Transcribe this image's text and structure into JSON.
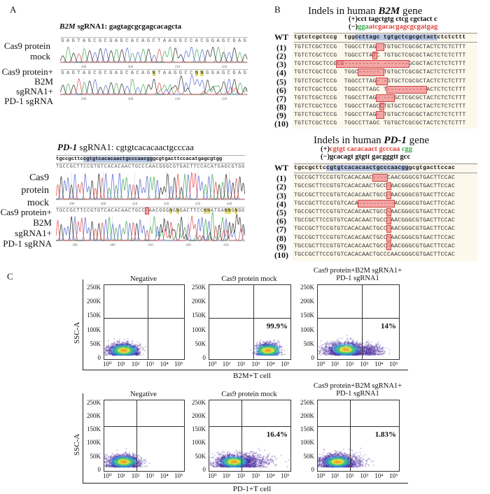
{
  "panels": {
    "a": "A",
    "b": "B",
    "c": "C"
  },
  "panel_a": {
    "b2m": {
      "title_gene": "B2M",
      "title_rest": " sgRNA1: gagtagcgcgagcacagcta",
      "mock_label": [
        "Cas9 protein",
        "mock"
      ],
      "edit_label": [
        "Cas9 protein+",
        "B2M sgRNA1+",
        "PD-1 sgRNA"
      ],
      "mock_bases": "GAGTAGCGCGAGCACAGCTAAGGCCACGGAGCGAG",
      "edit_bases": "GAGTAGCGCGAGCACAGNTAAGGCCNNGGAGCGAG",
      "mock_ticks": [
        "290",
        "300",
        "310",
        "320"
      ],
      "edit_ticks": [
        "290",
        "300",
        "310",
        "320"
      ]
    },
    "pd1": {
      "title_gene": "PD-1",
      "title_rest": " sgRNA1: cgtgtcacacaactgcccaa",
      "ref_pre": "tgccgcttc",
      "ref_hl": "cgtgtcacacaactgcccaacgg",
      "ref_post": "gcgtgacttccacatgagcgtgg",
      "mock_label": [
        "Cas9 protein",
        "mock"
      ],
      "edit_label": [
        "Cas9 protein+",
        "B2M sgRNA1+",
        "PD-1 sgRNA"
      ],
      "mock_bases": "TGCCGCTTCCGTGTCACACAACTGCCCAACGGGCGTGACTTCCACATGAGCGTGG",
      "edit_bases": "TGCCGCTTCCGTGTCACACAACTGCC-AACGGGNGNGACTTCCNNATGANNGNGG",
      "mock_ticks": [
        "390",
        "400",
        "410",
        "420",
        "430",
        "440"
      ],
      "edit_ticks": [
        "390",
        "400",
        "410",
        "420",
        "430"
      ]
    }
  },
  "panel_b": {
    "b2m": {
      "title_pre": "Indels in human ",
      "title_gene": "B2M",
      "title_post": " gene",
      "plus": "(+)cct tagctgtg ctcg cgctact c",
      "minus_prefix": "(−)",
      "minus_green": "gga",
      "minus_red": "atcgacacgagcgcgatgag",
      "rows": [
        {
          "label": "WT",
          "segs": [
            [
              "tgtctcgctccg  tgg",
              0
            ],
            [
              "ccttagc tgtgctcgcgctact",
              2
            ],
            [
              "ctctcttt",
              0
            ]
          ]
        },
        {
          "label": "(1)",
          "segs": [
            [
              "TGTCTCGCTCCG  TGGCCTTAG",
              0
            ],
            [
              "- ",
              1
            ],
            [
              "TGTGCTCGCGCTACTCTCTCTTT",
              0
            ]
          ]
        },
        {
          "label": "(2)",
          "segs": [
            [
              "TGTCTCGCTCCG  TGGCCTTA",
              0
            ],
            [
              "T",
              1
            ],
            [
              "C TGTGCTCGCGCTACTCTCTCTTT",
              0
            ]
          ]
        },
        {
          "label": "(3)",
          "segs": [
            [
              "TGTCTCGCTCCG",
              0
            ],
            [
              "CG---------- -------",
              1
            ],
            [
              "GCGCTACTCTCTCTTT",
              0
            ]
          ]
        },
        {
          "label": "(4)",
          "segs": [
            [
              "TGTCTCGCTCCG  TGGC",
              0
            ],
            [
              "------ ",
              1
            ],
            [
              "TGTGCTCGCGCTACTCTCTCTTT",
              0
            ]
          ]
        },
        {
          "label": "(5)",
          "segs": [
            [
              "TGTCTCGCTCCG  TGGCCTTAG",
              0
            ],
            [
              "- -",
              1
            ],
            [
              "GTGCTCGCGCTACTCTCTCTTT",
              0
            ]
          ]
        },
        {
          "label": "(6)",
          "segs": [
            [
              "TGTCTCGCTCCG  TGGCCTTAGC T",
              0
            ],
            [
              "-----------",
              1
            ],
            [
              "ACTCTCTCTTT",
              0
            ]
          ]
        },
        {
          "label": "(7)",
          "segs": [
            [
              "TGTCTCGCTCCG  TGGCCTTAG",
              0
            ],
            [
              "- ---",
              1
            ],
            [
              "GCTCGCGCTACTCTCTCTTT",
              0
            ]
          ]
        },
        {
          "label": "(8)",
          "segs": [
            [
              "TGTCTCGCTCCG  TGGCCTTAGC",
              0
            ],
            [
              "C",
              1
            ],
            [
              "TGTGCTCGCGCTACTCTCTCTTT",
              0
            ]
          ]
        },
        {
          "label": "(9)",
          "segs": [
            [
              "TGTCTCGCTCCG  TGGCCTTAG",
              0
            ],
            [
              "- ",
              1
            ],
            [
              "TGTGCTCGCGCTACTCTCTCTTT",
              0
            ]
          ]
        },
        {
          "label": "(10)",
          "segs": [
            [
              "TGTCTCGCTCCG  TGGCCTTAGC TGTGCTCGCGCTACTCTCTCTTT",
              0
            ]
          ]
        }
      ]
    },
    "pd1": {
      "title_pre": "Indels in human ",
      "title_gene": "PD-1",
      "title_post": " gene",
      "plus_prefix": "(+)",
      "plus_red": "cgtgt cacacaact gcccaa",
      "plus_green": " cgg",
      "minus": "(−)gcacagt gtgtt gacgggtt  gcc",
      "rows": [
        {
          "label": "WT",
          "segs": [
            [
              "tgccgcttc",
              0
            ],
            [
              "cgtgtcacacaactgcccaacgg",
              2
            ],
            [
              "gcgtgacttccac",
              0
            ]
          ]
        },
        {
          "label": "(1)",
          "segs": [
            [
              "TGCCGCTTCCGTGTCACACAAC",
              0
            ],
            [
              "----",
              1
            ],
            [
              "CAACGGGCGTGACTTCCAC",
              0
            ]
          ]
        },
        {
          "label": "(2)",
          "segs": [
            [
              "TGCCGCTTCCGTGTCACACAACTGCC",
              0
            ],
            [
              "-",
              1
            ],
            [
              "AACGGGCGTGACTTCCAC",
              0
            ]
          ]
        },
        {
          "label": "(3)",
          "segs": [
            [
              "TGCCGCTTCCGTGTCACACAACTGCC",
              0
            ],
            [
              "-",
              1
            ],
            [
              "AACGGGCGTGACTTCCAC",
              0
            ]
          ]
        },
        {
          "label": "(4)",
          "segs": [
            [
              "TGCCGCTTCCGTGTCACA",
              0
            ],
            [
              "----------",
              1
            ],
            [
              "ACGGGCGTGACTTCCAC",
              0
            ]
          ]
        },
        {
          "label": "(5)",
          "segs": [
            [
              "TGCCGCTTCCGTGTCACACAACTGCC",
              0
            ],
            [
              "-",
              1
            ],
            [
              "AACGGGCGTGACTTCCAC",
              0
            ]
          ]
        },
        {
          "label": "(6)",
          "segs": [
            [
              "TGCCGCTTCCGTGTCACACAACTGCC",
              0
            ],
            [
              "-",
              1
            ],
            [
              "AACGGGCGTGACTTCCAC",
              0
            ]
          ]
        },
        {
          "label": "(7)",
          "segs": [
            [
              "TGCCGCTTCCGTGTCACACAACTGCC",
              0
            ],
            [
              "-",
              1
            ],
            [
              "AACGGGCGTGACTTCCAC",
              0
            ]
          ]
        },
        {
          "label": "(8)",
          "segs": [
            [
              "TGCCGCTTCCGTGTCACACAACTGCC",
              0
            ],
            [
              "-",
              1
            ],
            [
              "AACGGGCGTGACTTCCAC",
              0
            ]
          ]
        },
        {
          "label": "(9)",
          "segs": [
            [
              "TGCCGCTTCCGTGTCACACAACTGCC",
              0
            ],
            [
              "-",
              1
            ],
            [
              "AACGGGCGTGACTTCCAC",
              0
            ]
          ]
        },
        {
          "label": "(10)",
          "segs": [
            [
              "TGCCGCTTCCGTGTCACACAACTGCCCAACGGGCGTGACTTCCAC",
              0
            ]
          ]
        }
      ]
    }
  },
  "colors": {
    "A": "#3aa84a",
    "C": "#4a5fd0",
    "G": "#222222",
    "T": "#e04040",
    "red_seq": "#e0413a",
    "green_seq": "#3aa84a",
    "hl_blue": "#b8c6e6"
  },
  "chart_data": [
    {
      "type": "scatter",
      "row": "B2M",
      "title": "Negative",
      "xlabel": "B2M+T cell",
      "ylabel": "SSC-A",
      "xscale": "log",
      "xlim": [
        1,
        100000
      ],
      "ylim": [
        0,
        262144
      ],
      "yticks": [
        "0",
        "50K",
        "100K",
        "150K",
        "200K",
        "250K"
      ],
      "xticks": [
        "10⁰",
        "10¹",
        "10²",
        "10³",
        "10⁴",
        "10⁵"
      ],
      "gate": {
        "x": 500,
        "y": 145000
      },
      "percent": "",
      "cluster": {
        "x_log_center": 1.2,
        "y_center": 32000
      }
    },
    {
      "type": "scatter",
      "row": "B2M",
      "title": "Cas9 protein mock",
      "xscale": "log",
      "xlim": [
        1,
        100000
      ],
      "ylim": [
        0,
        262144
      ],
      "gate": {
        "x": 500,
        "y": 145000
      },
      "percent": "99.9%",
      "cluster": {
        "x_log_center": 3.6,
        "y_center": 32000
      }
    },
    {
      "type": "scatter",
      "row": "B2M",
      "title": "Cas9 protein+B2M sgRNA1+\nPD-1 sgRNA1",
      "xscale": "log",
      "xlim": [
        1,
        100000
      ],
      "ylim": [
        0,
        262144
      ],
      "gate": {
        "x": 500,
        "y": 145000
      },
      "percent": "14%",
      "cluster": {
        "x_log_center": 1.7,
        "y_center": 35000
      }
    },
    {
      "type": "scatter",
      "row": "PD-1",
      "title": "Negative",
      "xlabel": "PD-1+T cell",
      "ylabel": "SSC-A",
      "xscale": "log",
      "xlim": [
        1,
        100000
      ],
      "ylim": [
        0,
        262144
      ],
      "gate": {
        "x": 100,
        "y": 165000
      },
      "percent": "",
      "cluster": {
        "x_log_center": 1.2,
        "y_center": 35000
      }
    },
    {
      "type": "scatter",
      "row": "PD-1",
      "title": "Cas9 protein mock",
      "xscale": "log",
      "xlim": [
        1,
        100000
      ],
      "ylim": [
        0,
        262144
      ],
      "gate": {
        "x": 100,
        "y": 165000
      },
      "percent": "16.4%",
      "cluster": {
        "x_log_center": 1.5,
        "y_center": 35000
      }
    },
    {
      "type": "scatter",
      "row": "PD-1",
      "title": "Cas9 protein+B2M sgRNA1+\nPD-1 sgRNA1",
      "xscale": "log",
      "xlim": [
        1,
        100000
      ],
      "ylim": [
        0,
        262144
      ],
      "gate": {
        "x": 100,
        "y": 165000
      },
      "percent": "1.83%",
      "cluster": {
        "x_log_center": 1.2,
        "y_center": 35000
      }
    }
  ],
  "panel_c": {
    "row1_xlabel": "B2M+T cell",
    "row2_xlabel": "PD-1+T cell",
    "ylabel": "SSC-A"
  }
}
